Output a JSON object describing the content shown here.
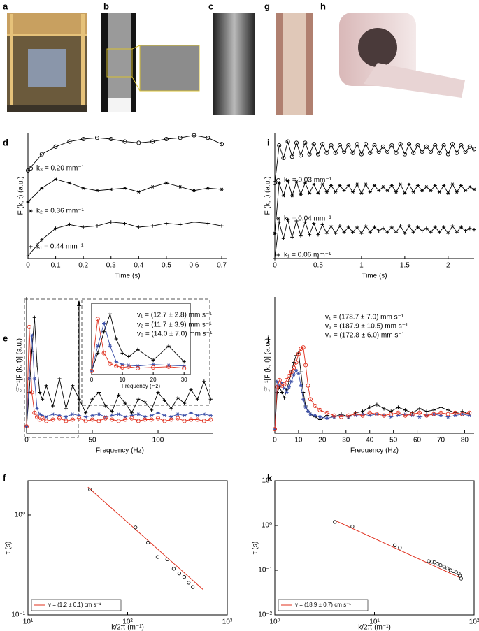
{
  "photo_panels": [
    "a",
    "b",
    "c",
    "g",
    "h"
  ],
  "chart_data": [
    {
      "panel": "d",
      "type": "line",
      "xlabel": "Time (s)",
      "ylabel": "F (k, t) (a.u.)",
      "x": [
        0,
        0.05,
        0.1,
        0.15,
        0.2,
        0.25,
        0.3,
        0.35,
        0.4,
        0.45,
        0.5,
        0.55,
        0.6,
        0.65,
        0.7
      ],
      "xlim": [
        0,
        0.72
      ],
      "xticks": [
        0,
        0.1,
        0.2,
        0.3,
        0.4,
        0.5,
        0.6,
        0.7
      ],
      "ylim": [
        0,
        10
      ],
      "series": [
        {
          "name": "k₃ = 0.20 mm⁻¹",
          "color": "#000000",
          "marker": "o",
          "values": [
            7.0,
            8.3,
            8.9,
            9.3,
            9.5,
            9.6,
            9.5,
            9.3,
            9.2,
            9.3,
            9.5,
            9.6,
            9.8,
            9.6,
            9.1
          ]
        },
        {
          "name": "k₂ = 0.36 mm⁻¹",
          "color": "#000000",
          "marker": "*",
          "values": [
            4.5,
            5.6,
            6.3,
            6.0,
            5.6,
            5.4,
            5.5,
            5.6,
            5.3,
            5.7,
            6.0,
            5.7,
            5.4,
            5.6,
            5.5
          ]
        },
        {
          "name": "k₁ = 0.44 mm⁻¹",
          "color": "#000000",
          "marker": "+",
          "values": [
            0.2,
            1.5,
            2.4,
            2.7,
            2.5,
            2.6,
            2.9,
            2.8,
            2.5,
            2.6,
            2.8,
            2.7,
            2.9,
            2.8,
            2.6
          ]
        }
      ]
    },
    {
      "panel": "e",
      "type": "line",
      "xlabel": "Frequency (Hz)",
      "ylabel": "ℱ⁻¹[F (k, t)] (a.u.)",
      "x": [
        0,
        2,
        4,
        6,
        8,
        10,
        12,
        15,
        20,
        25,
        30,
        35,
        40,
        45,
        50,
        55,
        60,
        65,
        70,
        75,
        80,
        85,
        90,
        95,
        100,
        105,
        110,
        115,
        120,
        125,
        130,
        135,
        140
      ],
      "xlim": [
        0,
        142
      ],
      "xticks": [
        0,
        50,
        100
      ],
      "ylim": [
        0,
        10
      ],
      "inset": {
        "xlim": [
          0,
          32
        ],
        "xticks": [
          0,
          10,
          20,
          30
        ],
        "xlabel": "Frequency (Hz)"
      },
      "series": [
        {
          "name": "v₁ = (12.7 ± 2.8) mm s⁻¹",
          "color": "#000000",
          "marker": "+",
          "values": [
            0.5,
            3,
            6,
            8.5,
            5,
            3,
            2.5,
            3.5,
            2,
            4,
            1.8,
            3.5,
            2.5,
            1.5,
            2.5,
            3,
            2,
            1.6,
            2.8,
            2.2,
            1.5,
            2.5,
            2.3,
            1.7,
            3,
            2.4,
            1.8,
            2.6,
            2.2,
            3.2,
            2.5,
            3.8,
            2.5
          ]
        },
        {
          "name": "v₂ = (11.7 ± 3.9) mm s⁻¹",
          "color": "#3b4fa8",
          "marker": "*",
          "values": [
            0.5,
            4,
            7.2,
            4,
            1.8,
            1.4,
            1.3,
            1.2,
            1.4,
            1.3,
            1.2,
            1.4,
            1.3,
            1.2,
            1.3,
            1.4,
            1.2,
            1.3,
            1.4,
            1.2,
            1.3,
            1.4,
            1.2,
            1.3,
            1.5,
            1.3,
            1.2,
            1.4,
            1.3,
            1.5,
            1.3,
            1.4,
            1.3
          ]
        },
        {
          "name": "v₃ = (14.0 ± 7.0) mm s⁻¹",
          "color": "#e0301e",
          "marker": "o",
          "values": [
            0.5,
            7.8,
            3,
            1.5,
            1.2,
            1.0,
            1.1,
            0.9,
            1.0,
            1.1,
            0.9,
            1.0,
            1.1,
            0.9,
            1.0,
            0.9,
            1.1,
            1.0,
            0.9,
            1.0,
            1.1,
            0.9,
            1.0,
            1.0,
            1.1,
            0.9,
            1.0,
            1.1,
            0.9,
            1.0,
            1.0,
            0.9,
            1.0
          ]
        }
      ]
    },
    {
      "panel": "f",
      "type": "scatter",
      "log_x": true,
      "log_y": true,
      "xlabel": "k/2π (m⁻¹)",
      "ylabel": "τ (s)",
      "x": [
        42,
        120,
        160,
        200,
        250,
        290,
        330,
        370,
        410,
        450
      ],
      "values": [
        1.8,
        0.75,
        0.53,
        0.38,
        0.36,
        0.29,
        0.26,
        0.24,
        0.21,
        0.19
      ],
      "color": "#000000",
      "xlim": [
        10,
        1000
      ],
      "ylim": [
        0.1,
        2.2
      ],
      "xticks": [
        {
          "value": 10,
          "label": "10¹"
        },
        {
          "value": 100,
          "label": "10²"
        },
        {
          "value": 1000,
          "label": "10³"
        }
      ],
      "yticks": [
        {
          "value": 0.1,
          "label": "10⁻¹"
        },
        {
          "value": 1,
          "label": "10⁰"
        }
      ],
      "fit": {
        "name": "v = (1.2 ± 0.1) cm s⁻¹",
        "color": "#e0301e",
        "x": [
          40,
          570
        ],
        "values": [
          1.9,
          0.18
        ]
      },
      "legend": "lower left"
    },
    {
      "panel": "i",
      "type": "line",
      "xlabel": "Time (s)",
      "ylabel": "F (k, t) (a.u.)",
      "x": [
        0,
        0.05,
        0.1,
        0.15,
        0.2,
        0.25,
        0.3,
        0.35,
        0.4,
        0.45,
        0.5,
        0.55,
        0.6,
        0.65,
        0.7,
        0.75,
        0.8,
        0.85,
        0.9,
        0.95,
        1,
        1.05,
        1.1,
        1.15,
        1.2,
        1.25,
        1.3,
        1.35,
        1.4,
        1.45,
        1.5,
        1.55,
        1.6,
        1.65,
        1.7,
        1.75,
        1.8,
        1.85,
        1.9,
        1.95,
        2,
        2.05,
        2.1,
        2.15,
        2.2,
        2.25,
        2.3
      ],
      "xlim": [
        0,
        2.3
      ],
      "xticks": [
        0,
        0.5,
        1,
        1.5,
        2
      ],
      "ylim": [
        0,
        10
      ],
      "series": [
        {
          "name": "k₃ = 0.03 mm⁻¹",
          "color": "#000000",
          "marker": "o",
          "values": [
            6.0,
            9.0,
            8.0,
            9.3,
            8.1,
            9.2,
            8.2,
            9.2,
            8.3,
            9.1,
            8.3,
            9.1,
            8.4,
            9.0,
            8.4,
            9.0,
            8.5,
            9.0,
            8.4,
            9.1,
            8.3,
            9.1,
            8.4,
            9.0,
            8.5,
            8.9,
            8.5,
            9.0,
            8.4,
            9.1,
            8.3,
            9.1,
            8.4,
            9.0,
            8.5,
            8.9,
            8.5,
            9.0,
            8.4,
            9.0,
            8.3,
            9.1,
            8.4,
            9.0,
            8.5,
            8.9,
            8.7
          ]
        },
        {
          "name": "k₂ = 0.04 mm⁻¹",
          "color": "#000000",
          "marker": "*",
          "values": [
            2.0,
            6.0,
            5.0,
            6.2,
            5.0,
            6.1,
            5.1,
            6.0,
            5.2,
            5.9,
            5.2,
            5.9,
            5.3,
            5.8,
            5.3,
            5.8,
            5.4,
            5.8,
            5.3,
            5.9,
            5.2,
            5.9,
            5.3,
            5.8,
            5.4,
            5.7,
            5.4,
            5.8,
            5.3,
            5.9,
            5.2,
            5.9,
            5.3,
            5.8,
            5.4,
            5.7,
            5.4,
            5.8,
            5.3,
            5.8,
            5.2,
            5.9,
            5.3,
            5.8,
            5.4,
            5.7,
            5.5
          ]
        },
        {
          "name": "k₁ = 0.06 mm⁻¹",
          "color": "#000000",
          "marker": "+",
          "values": [
            0.0,
            2.9,
            1.6,
            3.1,
            1.7,
            3.0,
            1.8,
            2.9,
            1.9,
            2.8,
            1.9,
            2.7,
            2.0,
            2.6,
            2.0,
            2.6,
            2.1,
            2.5,
            2.1,
            2.5,
            2.0,
            2.6,
            2.1,
            2.5,
            2.2,
            2.4,
            2.1,
            2.5,
            2.1,
            2.6,
            2.0,
            2.6,
            2.1,
            2.5,
            2.2,
            2.4,
            2.1,
            2.5,
            2.1,
            2.5,
            2.0,
            2.6,
            2.1,
            2.5,
            2.2,
            2.4,
            2.3
          ]
        }
      ]
    },
    {
      "panel": "j",
      "type": "line",
      "xlabel": "Frequency (Hz)",
      "ylabel": "ℱ⁻¹[F (k, t)] (a.u.)",
      "x": [
        0,
        1,
        2,
        3,
        4,
        5,
        6,
        7,
        8,
        9,
        10,
        11,
        12,
        13,
        14,
        15,
        17,
        19,
        22,
        25,
        28,
        31,
        34,
        37,
        40,
        43,
        46,
        49,
        52,
        55,
        58,
        61,
        64,
        67,
        70,
        73,
        76,
        79,
        82
      ],
      "xlim": [
        0,
        84
      ],
      "xticks": [
        0,
        10,
        20,
        30,
        40,
        50,
        60,
        70,
        80
      ],
      "ylim": [
        0,
        10
      ],
      "series": [
        {
          "name": "v₁ = (178.7 ± 7.0) mm s⁻¹",
          "color": "#000000",
          "marker": "+",
          "values": [
            0.3,
            3.0,
            3.4,
            3.0,
            2.6,
            3.2,
            3.8,
            4.5,
            5.2,
            5.7,
            5.9,
            4.5,
            3.0,
            2.0,
            1.6,
            1.4,
            1.2,
            1.0,
            1.3,
            1.2,
            1.4,
            1.2,
            1.5,
            1.6,
            1.9,
            2.1,
            1.8,
            1.6,
            1.9,
            1.7,
            1.5,
            1.8,
            1.6,
            1.7,
            1.9,
            1.7,
            1.5,
            1.6,
            1.4
          ]
        },
        {
          "name": "v₂ = (187.9 ± 10.5) mm s⁻¹",
          "color": "#3b4fa8",
          "marker": "*",
          "values": [
            0.3,
            3.8,
            3.5,
            3.7,
            3.3,
            3.0,
            3.4,
            3.8,
            4.3,
            4.6,
            4.4,
            3.5,
            2.5,
            1.9,
            1.6,
            1.4,
            1.3,
            1.2,
            1.1,
            1.2,
            1.3,
            1.2,
            1.3,
            1.4,
            1.3,
            1.4,
            1.3,
            1.2,
            1.3,
            1.4,
            1.3,
            1.2,
            1.3,
            1.4,
            1.3,
            1.2,
            1.3,
            1.4,
            1.3
          ]
        },
        {
          "name": "v₃ = (172.8 ± 6.0) mm s⁻¹",
          "color": "#e0301e",
          "marker": "o",
          "values": [
            0.3,
            3.4,
            3.9,
            3.5,
            3.6,
            3.9,
            4.2,
            4.5,
            4.8,
            5.2,
            5.8,
            6.2,
            6.3,
            5.0,
            3.5,
            2.5,
            2.0,
            1.7,
            1.5,
            1.3,
            1.2,
            1.3,
            1.4,
            1.3,
            1.5,
            1.4,
            1.3,
            1.4,
            1.5,
            1.3,
            1.4,
            1.5,
            1.3,
            1.4,
            1.5,
            1.4,
            1.5,
            1.4,
            1.5
          ]
        }
      ]
    },
    {
      "panel": "k",
      "type": "scatter",
      "log_x": true,
      "log_y": true,
      "xlabel": "k/2π (m⁻¹)",
      "ylabel": "τ (s)",
      "x": [
        4,
        6,
        16,
        18,
        35,
        38,
        40,
        43,
        46,
        50,
        54,
        58,
        62,
        66,
        70,
        72,
        74
      ],
      "values": [
        1.2,
        0.95,
        0.36,
        0.32,
        0.16,
        0.155,
        0.15,
        0.14,
        0.13,
        0.12,
        0.11,
        0.1,
        0.095,
        0.09,
        0.085,
        0.075,
        0.065
      ],
      "color": "#000000",
      "xlim": [
        1,
        100
      ],
      "ylim": [
        0.01,
        10
      ],
      "xticks": [
        {
          "value": 1,
          "label": "10⁰"
        },
        {
          "value": 10,
          "label": "10¹"
        },
        {
          "value": 100,
          "label": "10²"
        }
      ],
      "yticks": [
        {
          "value": 0.01,
          "label": "10⁻²"
        },
        {
          "value": 0.1,
          "label": "10⁻¹"
        },
        {
          "value": 1,
          "label": "10⁰"
        },
        {
          "value": 10,
          "label": "10¹"
        }
      ],
      "fit": {
        "name": "v = (18.9 ± 0.7) cm s⁻¹",
        "color": "#e0301e",
        "x": [
          4,
          70
        ],
        "values": [
          1.3,
          0.07
        ]
      },
      "legend": "lower left"
    }
  ]
}
